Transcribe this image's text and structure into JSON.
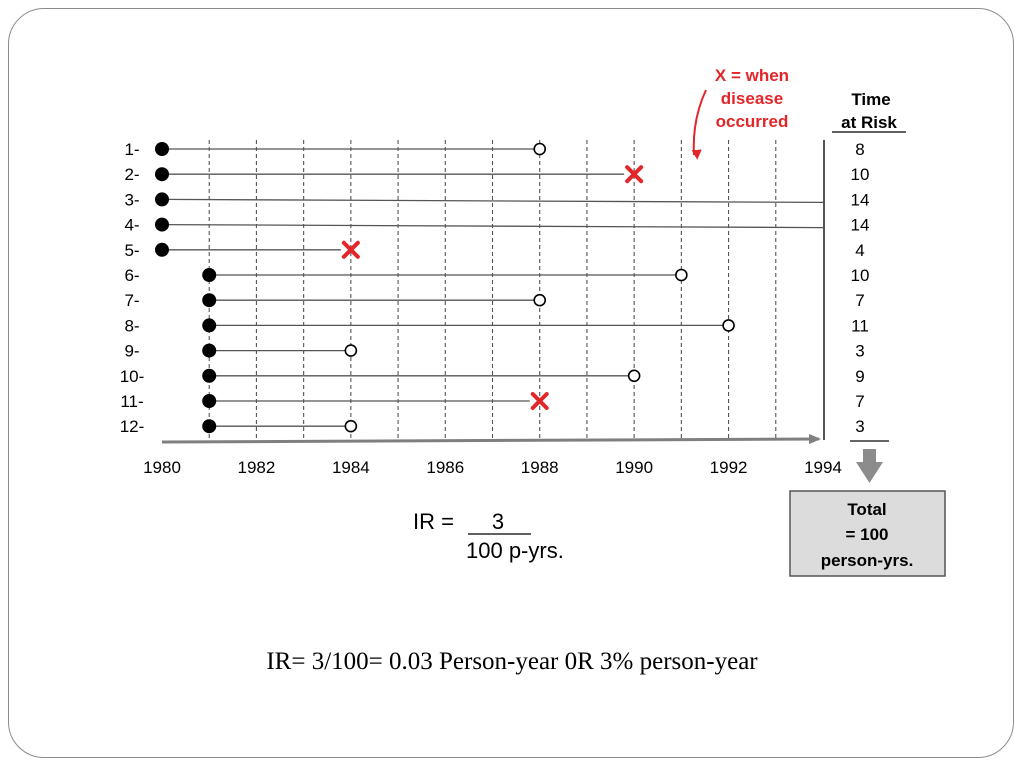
{
  "chart_data": {
    "type": "timeline",
    "x_axis": {
      "min": 1980,
      "max": 1994,
      "ticks": [
        1980,
        1982,
        1984,
        1986,
        1988,
        1990,
        1992,
        1994
      ]
    },
    "subjects": [
      {
        "label": "1-",
        "start": 1980,
        "end": 1988,
        "outcome": "censored",
        "time_at_risk": "8"
      },
      {
        "label": "2-",
        "start": 1980,
        "end": 1990,
        "outcome": "disease",
        "time_at_risk": "10"
      },
      {
        "label": "3-",
        "start": 1980,
        "end": 1994,
        "outcome": "none",
        "time_at_risk": "14"
      },
      {
        "label": "4-",
        "start": 1980,
        "end": 1994,
        "outcome": "none",
        "time_at_risk": "14"
      },
      {
        "label": "5-",
        "start": 1980,
        "end": 1984,
        "outcome": "disease",
        "time_at_risk": "4"
      },
      {
        "label": "6-",
        "start": 1981,
        "end": 1991,
        "outcome": "censored",
        "time_at_risk": "10"
      },
      {
        "label": "7-",
        "start": 1981,
        "end": 1988,
        "outcome": "censored",
        "time_at_risk": "7"
      },
      {
        "label": "8-",
        "start": 1981,
        "end": 1992,
        "outcome": "censored",
        "time_at_risk": "11"
      },
      {
        "label": "9-",
        "start": 1981,
        "end": 1984,
        "outcome": "censored",
        "time_at_risk": "3"
      },
      {
        "label": "10-",
        "start": 1981,
        "end": 1990,
        "outcome": "censored",
        "time_at_risk": "9"
      },
      {
        "label": "11-",
        "start": 1981,
        "end": 1988,
        "outcome": "disease",
        "time_at_risk": "7"
      },
      {
        "label": "12-",
        "start": 1981,
        "end": 1984,
        "outcome": "censored",
        "time_at_risk": "3"
      }
    ],
    "disease_marker": "x",
    "colors": {
      "disease": "#e3262a",
      "line": "#555555",
      "grid": "#555555",
      "axis": "#7f7f7f"
    }
  },
  "legend": {
    "line1_x": "X",
    "line1_rest": " = when",
    "line2": "disease",
    "line3": "occurred"
  },
  "time_header": {
    "line1": "Time",
    "line2": "at Risk"
  },
  "total_box": {
    "line1": "Total",
    "line2": "= 100",
    "line3": "person-yrs."
  },
  "ir_formula": {
    "label": "IR =",
    "numerator": "3",
    "denominator": "100 p-yrs."
  },
  "caption": "IR= 3/100= 0.03 Person-year 0R 3% person-year"
}
